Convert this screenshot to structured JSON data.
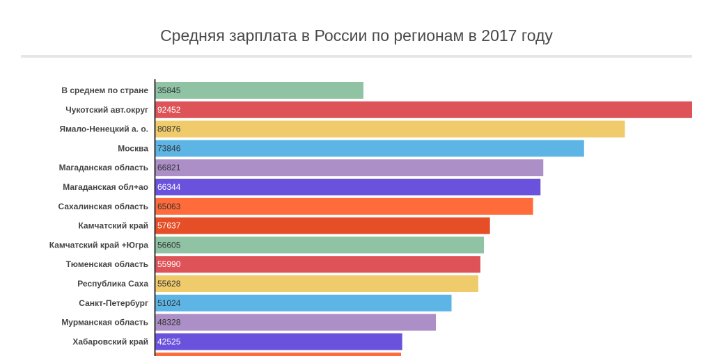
{
  "chart_data": {
    "type": "bar",
    "orientation": "horizontal",
    "title": "Средняя зарплата в России по регионам в 2017 году",
    "categories": [
      "В среднем по стране",
      "Чукотский авт.округ",
      "Ямало-Ненецкий а. о.",
      "Москва",
      "Магаданская область",
      "Магаданская обл+ао",
      "Сахалинская область",
      "Камчатский край",
      "Камчатский край +Югра",
      "Тюменская область",
      "Республика Саха",
      "Санкт-Петербург",
      "Мурманская область",
      "Хабаровский край"
    ],
    "values": [
      35845,
      92452,
      80876,
      73846,
      66821,
      66344,
      65063,
      57637,
      56605,
      55990,
      55628,
      51024,
      48328,
      42525
    ],
    "bar_colors": [
      "#8fc3a4",
      "#dd5358",
      "#f0cb6b",
      "#5db5e6",
      "#ac8fc7",
      "#6b52dc",
      "#ff6b3b",
      "#e54e26",
      "#8fc3a4",
      "#dd5358",
      "#f0cb6b",
      "#5db5e6",
      "#ac8fc7",
      "#6b52dc"
    ],
    "value_label_colors": [
      "#333333",
      "#ffffff",
      "#333333",
      "#333333",
      "#333333",
      "#ffffff",
      "#333333",
      "#ffffff",
      "#333333",
      "#ffffff",
      "#333333",
      "#333333",
      "#333333",
      "#ffffff"
    ],
    "partial_next_bar_color": "#ff6b3b",
    "xlim": [
      0,
      92452
    ],
    "xlabel": "",
    "ylabel": "",
    "grid": false,
    "legend": "none"
  }
}
